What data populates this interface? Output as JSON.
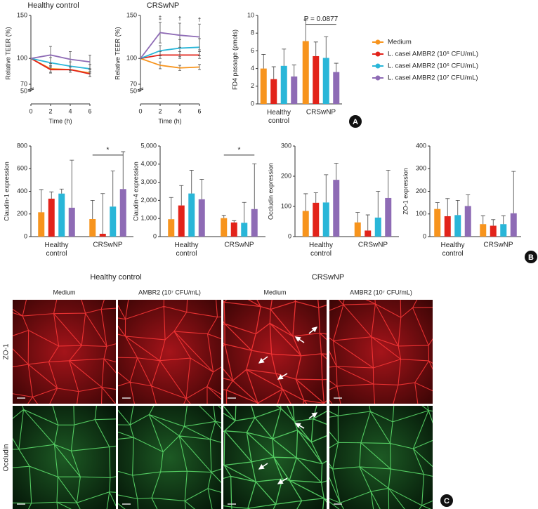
{
  "chart_data": [
    {
      "type": "line",
      "title": "Healthy control",
      "xlabel": "Time (h)",
      "ylabel": "Relative TEER (%)",
      "x": [
        0,
        2,
        4,
        6
      ],
      "xlim": [
        0,
        6
      ],
      "xticks": [
        0,
        2,
        4,
        6
      ],
      "ylim": [
        50,
        150
      ],
      "yticks": [
        50,
        70,
        100,
        150
      ],
      "axis_break": true,
      "series": [
        {
          "name": "Medium",
          "color": "#f7941d",
          "values": [
            100,
            88,
            87,
            83
          ],
          "errors": [
            0,
            4,
            3,
            4
          ]
        },
        {
          "name": "L. casei AMBR2 (10⁵ CFU/mL)",
          "color": "#e2231a",
          "values": [
            100,
            87,
            87,
            82
          ],
          "errors": [
            0,
            4,
            3,
            3
          ]
        },
        {
          "name": "L. casei AMBR2 (10⁶ CFU/mL)",
          "color": "#29b6d8",
          "values": [
            100,
            95,
            91,
            88
          ],
          "errors": [
            0,
            6,
            5,
            5
          ]
        },
        {
          "name": "L. casei AMBR2 (10⁷ CFU/mL)",
          "color": "#8e6bb5",
          "values": [
            100,
            104,
            99,
            96
          ],
          "errors": [
            0,
            10,
            9,
            8
          ]
        }
      ]
    },
    {
      "type": "line",
      "title": "CRSwNP",
      "xlabel": "Time (h)",
      "ylabel": "Relative TEER (%)",
      "x": [
        0,
        2,
        4,
        6
      ],
      "xlim": [
        0,
        6
      ],
      "xticks": [
        0,
        2,
        4,
        6
      ],
      "ylim": [
        50,
        150
      ],
      "yticks": [
        50,
        70,
        100,
        150
      ],
      "axis_break": true,
      "series": [
        {
          "name": "Medium",
          "color": "#f7941d",
          "values": [
            100,
            92,
            89,
            90
          ],
          "errors": [
            0,
            4,
            3,
            3
          ]
        },
        {
          "name": "L. casei AMBR2 (10⁵ CFU/mL)",
          "color": "#e2231a",
          "values": [
            100,
            104,
            104,
            104
          ],
          "errors": [
            0,
            4,
            4,
            4
          ]
        },
        {
          "name": "L. casei AMBR2 (10⁶ CFU/mL)",
          "color": "#29b6d8",
          "values": [
            100,
            109,
            112,
            113
          ],
          "errors": [
            0,
            6,
            10,
            10
          ]
        },
        {
          "name": "L. casei AMBR2 (10⁷ CFU/mL)",
          "color": "#8e6bb5",
          "values": [
            100,
            130,
            127,
            125
          ],
          "errors": [
            0,
            12,
            14,
            15
          ]
        }
      ],
      "annotations": [
        {
          "text": "‡",
          "x": 2
        },
        {
          "text": "†",
          "x": 4
        },
        {
          "text": "†",
          "x": 6
        }
      ]
    },
    {
      "type": "bar",
      "ylabel": "FD4 passage (pmols)",
      "categories": [
        "Healthy control",
        "CRSwNP"
      ],
      "ylim": [
        0,
        10
      ],
      "yticks": [
        0,
        2,
        4,
        6,
        8,
        10
      ],
      "series": [
        {
          "name": "Medium",
          "color": "#f7941d",
          "values": [
            4.0,
            7.1
          ],
          "errors": [
            1.6,
            2.4
          ]
        },
        {
          "name": "L. casei AMBR2 (10⁵ CFU/mL)",
          "color": "#e2231a",
          "values": [
            2.8,
            5.4
          ],
          "errors": [
            1.4,
            1.6
          ]
        },
        {
          "name": "L. casei AMBR2 (10⁶ CFU/mL)",
          "color": "#29b6d8",
          "values": [
            4.3,
            5.2
          ],
          "errors": [
            1.9,
            2.4
          ]
        },
        {
          "name": "L. casei AMBR2 (10⁷ CFU/mL)",
          "color": "#8e6bb5",
          "values": [
            3.1,
            3.6
          ],
          "errors": [
            1.3,
            1.0
          ]
        }
      ],
      "annotations": [
        {
          "text": "P = 0.0877",
          "category": 1
        }
      ]
    },
    {
      "type": "bar",
      "ylabel": "Claudin-1 expression",
      "categories": [
        "Healthy control",
        "CRSwNP"
      ],
      "ylim": [
        0,
        800
      ],
      "yticks": [
        0,
        200,
        400,
        600,
        800
      ],
      "series": [
        {
          "name": "Medium",
          "color": "#f7941d",
          "values": [
            215,
            155
          ],
          "errors": [
            200,
            165
          ]
        },
        {
          "name": "L. casei AMBR2 (10⁵ CFU/mL)",
          "color": "#e2231a",
          "values": [
            335,
            25
          ],
          "errors": [
            60,
            355
          ]
        },
        {
          "name": "L. casei AMBR2 (10⁶ CFU/mL)",
          "color": "#29b6d8",
          "values": [
            380,
            265
          ],
          "errors": [
            40,
            315
          ]
        },
        {
          "name": "L. casei AMBR2 (10⁷ CFU/mL)",
          "color": "#8e6bb5",
          "values": [
            255,
            420
          ],
          "errors": [
            420,
            330
          ]
        }
      ],
      "annotations": [
        {
          "text": "*",
          "category": 1
        }
      ]
    },
    {
      "type": "bar",
      "ylabel": "Claudin-4 expression",
      "categories": [
        "Healthy control",
        "CRSwNP"
      ],
      "ylim": [
        0,
        5000
      ],
      "yticks": [
        0,
        {
          "value": 1000,
          "label": "1,000"
        },
        {
          "value": 2000,
          "label": "2,000"
        },
        {
          "value": 3000,
          "label": "3,000"
        },
        {
          "value": 4000,
          "label": "4,000"
        },
        {
          "value": 5000,
          "label": "5,000"
        }
      ],
      "series": [
        {
          "name": "Medium",
          "color": "#f7941d",
          "values": [
            960,
            1020
          ],
          "errors": [
            1200,
            150
          ]
        },
        {
          "name": "L. casei AMBR2 (10⁵ CFU/mL)",
          "color": "#e2231a",
          "values": [
            1720,
            780
          ],
          "errors": [
            1100,
            100
          ]
        },
        {
          "name": "L. casei AMBR2 (10⁶ CFU/mL)",
          "color": "#29b6d8",
          "values": [
            2380,
            760
          ],
          "errors": [
            1280,
            1130
          ]
        },
        {
          "name": "L. casei AMBR2 (10⁷ CFU/mL)",
          "color": "#8e6bb5",
          "values": [
            2060,
            1520
          ],
          "errors": [
            1100,
            2500
          ]
        }
      ],
      "annotations": [
        {
          "text": "*",
          "category": 1
        }
      ]
    },
    {
      "type": "bar",
      "ylabel": "Occludin expression",
      "categories": [
        "Healthy control",
        "CRSwNP"
      ],
      "ylim": [
        0,
        300
      ],
      "yticks": [
        0,
        100,
        200,
        300
      ],
      "series": [
        {
          "name": "Medium",
          "color": "#f7941d",
          "values": [
            85,
            47
          ],
          "errors": [
            57,
            33
          ]
        },
        {
          "name": "L. casei AMBR2 (10⁵ CFU/mL)",
          "color": "#e2231a",
          "values": [
            112,
            20
          ],
          "errors": [
            33,
            52
          ]
        },
        {
          "name": "L. casei AMBR2 (10⁶ CFU/mL)",
          "color": "#29b6d8",
          "values": [
            113,
            63
          ],
          "errors": [
            92,
            87
          ]
        },
        {
          "name": "L. casei AMBR2 (10⁷ CFU/mL)",
          "color": "#8e6bb5",
          "values": [
            188,
            128
          ],
          "errors": [
            55,
            92
          ]
        }
      ]
    },
    {
      "type": "bar",
      "ylabel": "ZO-1 expression",
      "categories": [
        "Healthy control",
        "CRSwNP"
      ],
      "ylim": [
        0,
        400
      ],
      "yticks": [
        0,
        100,
        200,
        300,
        400
      ],
      "series": [
        {
          "name": "Medium",
          "color": "#f7941d",
          "values": [
            122,
            55
          ],
          "errors": [
            28,
            37
          ]
        },
        {
          "name": "L. casei AMBR2 (10⁵ CFU/mL)",
          "color": "#e2231a",
          "values": [
            90,
            48
          ],
          "errors": [
            78,
            27
          ]
        },
        {
          "name": "L. casei AMBR2 (10⁶ CFU/mL)",
          "color": "#29b6d8",
          "values": [
            95,
            55
          ],
          "errors": [
            65,
            37
          ]
        },
        {
          "name": "L. casei AMBR2 (10⁷ CFU/mL)",
          "color": "#8e6bb5",
          "values": [
            135,
            103
          ],
          "errors": [
            50,
            185
          ]
        }
      ]
    }
  ],
  "panel_labels": [
    "A",
    "B",
    "C"
  ],
  "image_panel": {
    "groups": [
      "Healthy control",
      "CRSwNP"
    ],
    "conditions": [
      "Medium",
      "AMBR2 (10⁷ CFU/mL)",
      "Medium",
      "AMBR2 (10⁷ CFU/mL)"
    ],
    "stains": [
      "ZO-1",
      "Occludin"
    ]
  }
}
